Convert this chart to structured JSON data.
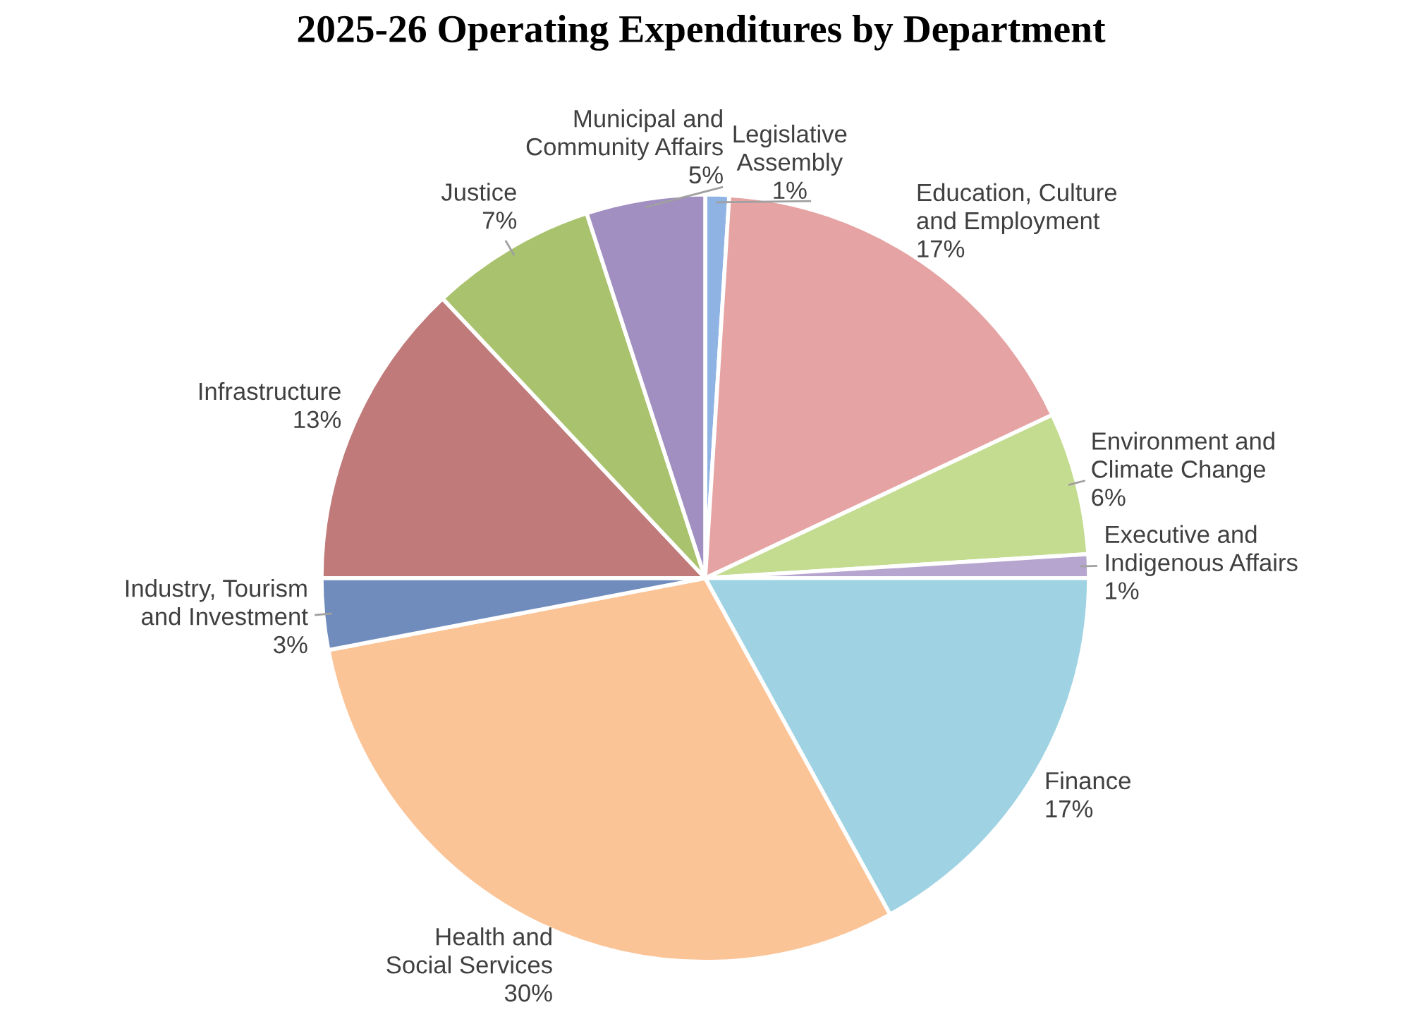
{
  "chart_data": {
    "type": "pie",
    "title": "2025-26 Operating Expenditures by Department",
    "categories": [
      "Legislative Assembly",
      "Education, Culture and Employment",
      "Environment and Climate Change",
      "Executive and Indigenous Affairs",
      "Finance",
      "Health and Social Services",
      "Industry, Tourism and Investment",
      "Infrastructure",
      "Justice",
      "Municipal and Community Affairs"
    ],
    "values": [
      1,
      17,
      6,
      1,
      17,
      30,
      3,
      13,
      7,
      5
    ],
    "value_labels": [
      "1%",
      "17%",
      "6%",
      "1%",
      "17%",
      "30%",
      "3%",
      "13%",
      "7%",
      "5%"
    ],
    "colors": [
      "#8fb4e3",
      "#e6a3a3",
      "#c3dc8f",
      "#b6a6cf",
      "#9fd3e3",
      "#fbc497",
      "#6f8cbd",
      "#c07a7a",
      "#a9c26d",
      "#a08fc0"
    ],
    "legend": false
  }
}
